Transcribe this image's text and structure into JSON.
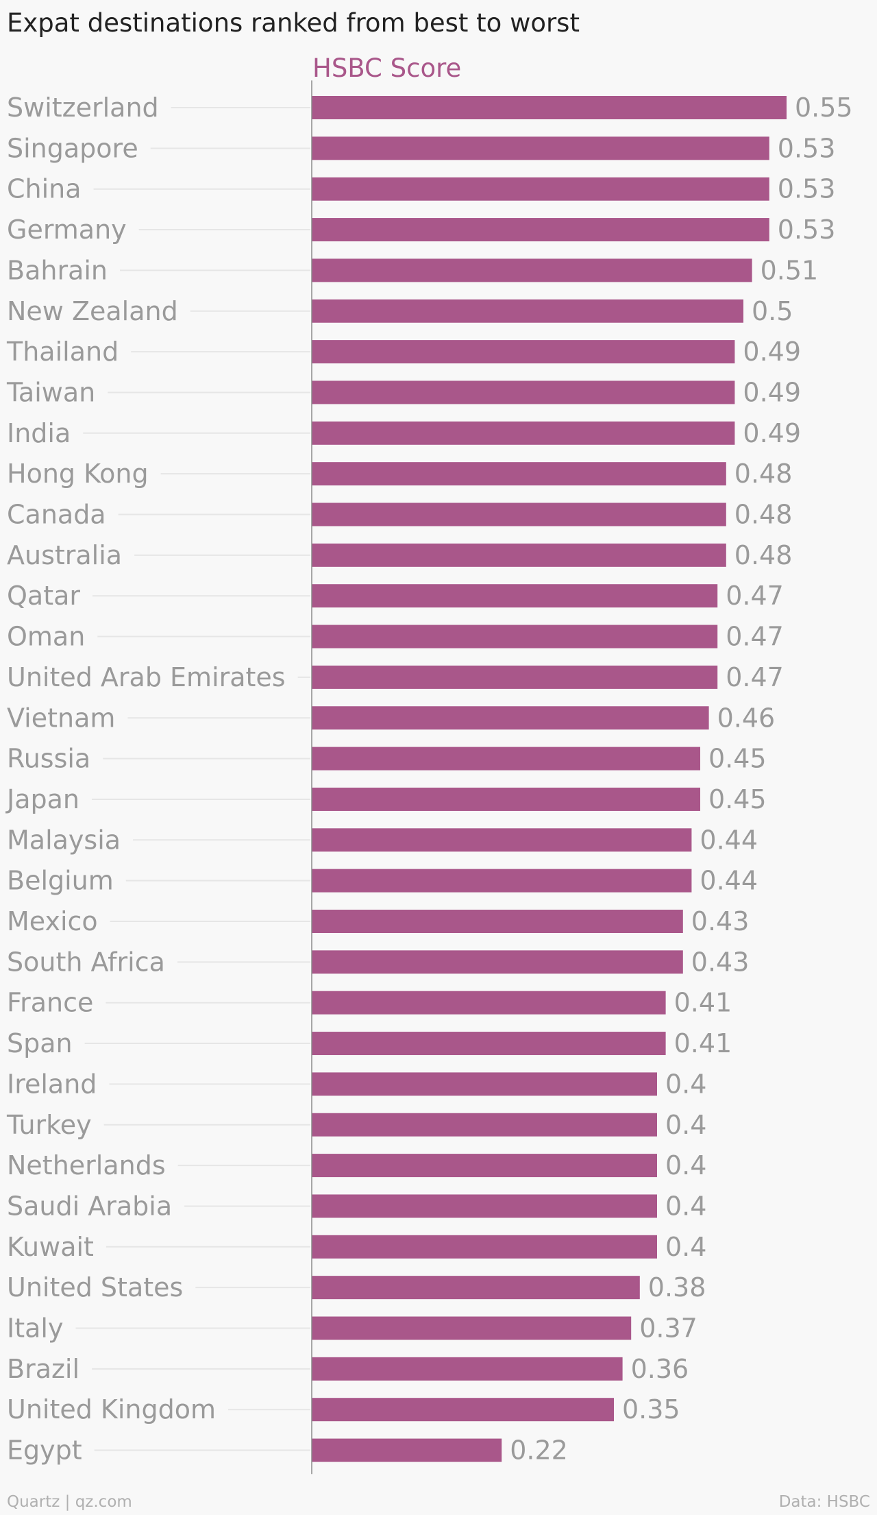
{
  "chart_data": {
    "type": "bar",
    "orientation": "horizontal",
    "title": "Expat destinations ranked from best to worst",
    "series": [
      {
        "name": "HSBC Score",
        "values": [
          0.55,
          0.53,
          0.53,
          0.53,
          0.51,
          0.5,
          0.49,
          0.49,
          0.49,
          0.48,
          0.48,
          0.48,
          0.47,
          0.47,
          0.47,
          0.46,
          0.45,
          0.45,
          0.44,
          0.44,
          0.43,
          0.43,
          0.41,
          0.41,
          0.4,
          0.4,
          0.4,
          0.4,
          0.4,
          0.38,
          0.37,
          0.36,
          0.35,
          0.22
        ]
      }
    ],
    "categories": [
      "Switzerland",
      "Singapore",
      "China",
      "Germany",
      "Bahrain",
      "New Zealand",
      "Thailand",
      "Taiwan",
      "India",
      "Hong Kong",
      "Canada",
      "Australia",
      "Qatar",
      "Oman",
      "United Arab Emirates",
      "Vietnam",
      "Russia",
      "Japan",
      "Malaysia",
      "Belgium",
      "Mexico",
      "South Africa",
      "France",
      "Span",
      "Ireland",
      "Turkey",
      "Netherlands",
      "Saudi Arabia",
      "Kuwait",
      "United States",
      "Italy",
      "Brazil",
      "United Kingdom",
      "Egypt"
    ],
    "value_labels": [
      "0.55",
      "0.53",
      "0.53",
      "0.53",
      "0.51",
      "0.5",
      "0.49",
      "0.49",
      "0.49",
      "0.48",
      "0.48",
      "0.48",
      "0.47",
      "0.47",
      "0.47",
      "0.46",
      "0.45",
      "0.45",
      "0.44",
      "0.44",
      "0.43",
      "0.43",
      "0.41",
      "0.41",
      "0.4",
      "0.4",
      "0.4",
      "0.4",
      "0.4",
      "0.38",
      "0.37",
      "0.36",
      "0.35",
      "0.22"
    ],
    "xlim": [
      0,
      0.55
    ],
    "grid": false,
    "colors": {
      "bar": "#a9578a",
      "series_label": "#a9578a",
      "label_text": "#9a9a9a",
      "title_text": "#222222",
      "guide_line": "#e6e6e6",
      "axis_line": "#8a8a8a",
      "background": "#f8f8f8"
    }
  },
  "footer": {
    "credit": "Quartz | qz.com",
    "source": "Data: HSBC"
  }
}
